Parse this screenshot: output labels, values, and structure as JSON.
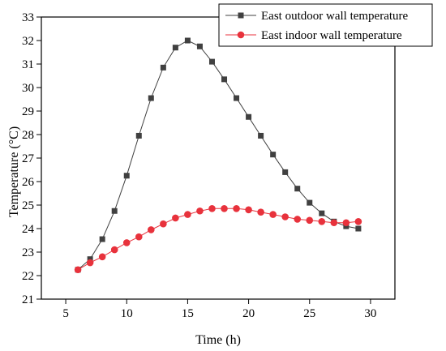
{
  "chart_data": {
    "type": "line",
    "xlabel": "Time (h)",
    "ylabel": "Temperature (°C)",
    "xlim": [
      3,
      32
    ],
    "ylim": [
      21,
      33
    ],
    "xticks": [
      5,
      10,
      15,
      20,
      25,
      30
    ],
    "yticks": [
      21,
      22,
      23,
      24,
      25,
      26,
      27,
      28,
      29,
      30,
      31,
      32,
      33
    ],
    "legend_position": "top-right",
    "grid": false,
    "series": [
      {
        "name": "East outdoor wall temperature",
        "color": "#404040",
        "marker": "square",
        "x": [
          6,
          7,
          8,
          9,
          10,
          11,
          12,
          13,
          14,
          15,
          16,
          17,
          18,
          19,
          20,
          21,
          22,
          23,
          24,
          25,
          26,
          27,
          28,
          29
        ],
        "y": [
          22.25,
          22.7,
          23.55,
          24.75,
          26.25,
          27.95,
          29.55,
          30.85,
          31.7,
          32.0,
          31.75,
          31.1,
          30.35,
          29.55,
          28.75,
          27.95,
          27.15,
          26.4,
          25.7,
          25.1,
          24.65,
          24.3,
          24.1,
          24.0
        ]
      },
      {
        "name": "East indoor wall temperature",
        "color": "#e8323c",
        "marker": "circle",
        "x": [
          6,
          7,
          8,
          9,
          10,
          11,
          12,
          13,
          14,
          15,
          16,
          17,
          18,
          19,
          20,
          21,
          22,
          23,
          24,
          25,
          26,
          27,
          28,
          29
        ],
        "y": [
          22.25,
          22.55,
          22.8,
          23.1,
          23.4,
          23.65,
          23.95,
          24.2,
          24.45,
          24.6,
          24.75,
          24.85,
          24.85,
          24.85,
          24.8,
          24.7,
          24.6,
          24.5,
          24.4,
          24.35,
          24.3,
          24.25,
          24.25,
          24.3
        ]
      }
    ]
  }
}
